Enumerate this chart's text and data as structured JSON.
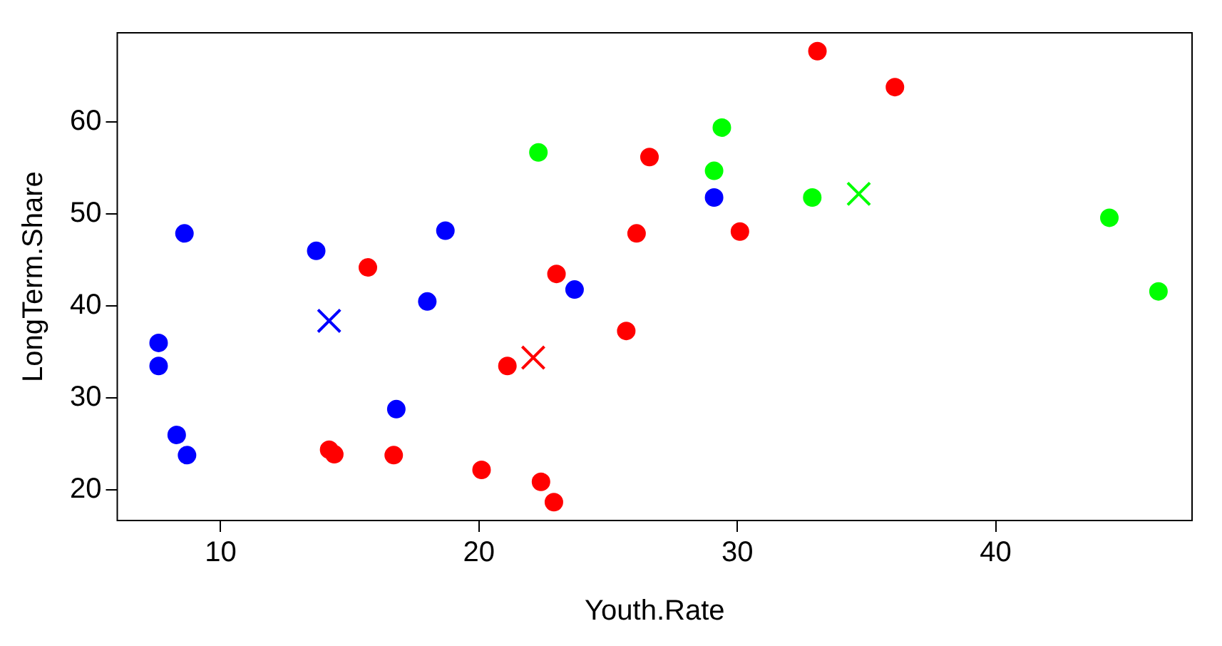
{
  "chart_data": {
    "type": "scatter",
    "xlabel": "Youth.Rate",
    "ylabel": "LongTerm.Share",
    "xlim": [
      6.0,
      47.6
    ],
    "ylim": [
      16.7,
      69.7
    ],
    "xticks": [
      10,
      20,
      30,
      40
    ],
    "yticks": [
      20,
      30,
      40,
      50,
      60
    ],
    "grid": false,
    "legend": false,
    "series": [
      {
        "color": "#0000ff",
        "marker": "circle",
        "x": [
          7.6,
          7.6,
          8.3,
          8.7,
          8.6,
          13.7,
          16.8,
          18.0,
          18.7,
          23.7,
          29.1
        ],
        "values": [
          36.0,
          33.5,
          26.0,
          23.8,
          47.9,
          46.0,
          28.8,
          40.5,
          48.2,
          41.8,
          51.8
        ]
      },
      {
        "color": "#ff0000",
        "marker": "circle",
        "x": [
          33.1,
          36.1,
          26.6,
          26.1,
          30.1,
          15.7,
          23.0,
          25.7,
          21.1,
          14.2,
          14.4,
          16.7,
          20.1,
          22.4,
          22.9
        ],
        "values": [
          67.7,
          63.8,
          56.2,
          47.9,
          48.1,
          44.2,
          43.5,
          37.3,
          33.5,
          24.4,
          23.9,
          23.8,
          22.2,
          20.9,
          18.7
        ]
      },
      {
        "color": "#00ff00",
        "marker": "circle",
        "x": [
          22.3,
          29.4,
          29.1,
          32.9,
          44.4,
          46.3
        ],
        "values": [
          56.7,
          59.4,
          54.7,
          51.8,
          49.6,
          41.6
        ]
      },
      {
        "color": "#0000ff",
        "marker": "cross",
        "x": [
          14.2
        ],
        "values": [
          38.4
        ]
      },
      {
        "color": "#ff0000",
        "marker": "cross",
        "x": [
          22.1
        ],
        "values": [
          34.4
        ]
      },
      {
        "color": "#00ff00",
        "marker": "cross",
        "x": [
          34.7
        ],
        "values": [
          52.2
        ]
      }
    ]
  }
}
